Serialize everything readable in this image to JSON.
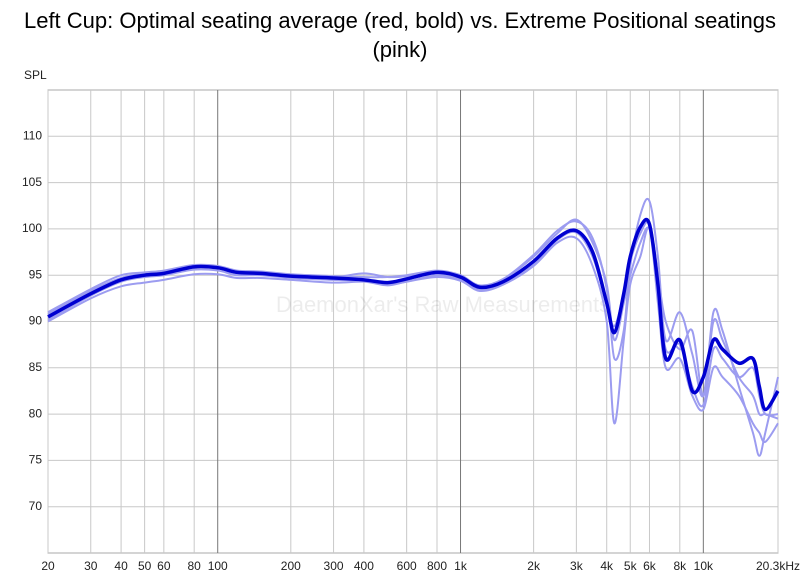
{
  "chart_data": {
    "type": "line",
    "title": "Left Cup: Optimal seating average (red, bold) vs. Extreme Positional seatings (pink)",
    "y_label": "SPL",
    "watermark": "DaemonXar's Raw Measurements",
    "log_x": true,
    "grid": true,
    "xlim": [
      20,
      20300
    ],
    "ylim": [
      65,
      115
    ],
    "yticks": [
      70,
      75,
      80,
      85,
      90,
      95,
      100,
      105,
      110
    ],
    "xticks": [
      20,
      30,
      40,
      50,
      60,
      80,
      100,
      200,
      300,
      400,
      600,
      800,
      {
        "value": 1000,
        "label": "1k"
      },
      {
        "value": 2000,
        "label": "2k"
      },
      {
        "value": 3000,
        "label": "3k"
      },
      {
        "value": 4000,
        "label": "4k"
      },
      {
        "value": 5000,
        "label": "5k"
      },
      {
        "value": 6000,
        "label": "6k"
      },
      {
        "value": 8000,
        "label": "8k"
      },
      {
        "value": 10000,
        "label": "10k"
      },
      {
        "value": 20300,
        "label": "20.3kHz"
      }
    ],
    "x": [
      20,
      30,
      40,
      50,
      60,
      80,
      100,
      120,
      150,
      200,
      300,
      400,
      500,
      600,
      800,
      1000,
      1200,
      1500,
      2000,
      2500,
      3000,
      3500,
      4000,
      4300,
      4700,
      5000,
      5500,
      6000,
      6500,
      7000,
      8000,
      9000,
      10000,
      11000,
      12000,
      14000,
      16000,
      17000,
      18000,
      20300
    ],
    "series": [
      {
        "color": "#9c9cf0",
        "width": 2,
        "values": [
          91,
          93.5,
          95,
          95.3,
          95.5,
          96.1,
          96,
          95.5,
          95.4,
          95.1,
          94.9,
          94.8,
          94.8,
          95,
          95.5,
          95,
          93.9,
          94.6,
          97.2,
          99.8,
          100.8,
          99,
          93.5,
          86,
          89,
          96,
          101.5,
          103,
          97,
          88,
          91,
          86.5,
          82,
          91,
          89,
          83,
          78,
          75.5,
          78,
          84
        ]
      },
      {
        "color": "#9c9cf0",
        "width": 2,
        "values": [
          90.2,
          92.8,
          94.3,
          94.8,
          95,
          95.6,
          95.5,
          95,
          95,
          94.7,
          94.5,
          94.4,
          94,
          94.3,
          95,
          94.5,
          93.5,
          94,
          96,
          98.5,
          99,
          96,
          90,
          79,
          88,
          94,
          97,
          100,
          92,
          85,
          86,
          82,
          80.5,
          85,
          84,
          82,
          79,
          78,
          77,
          79
        ]
      },
      {
        "color": "#9c9cf0",
        "width": 2,
        "values": [
          90.8,
          93.3,
          94.7,
          95.2,
          95.4,
          96,
          95.9,
          95.4,
          95.3,
          95,
          94.8,
          95.2,
          94.8,
          94.9,
          95.4,
          95,
          93.8,
          94.5,
          97,
          99.5,
          101,
          98.5,
          94,
          88,
          92,
          95,
          98.5,
          100,
          95,
          90,
          87,
          89,
          82,
          90,
          88,
          84,
          82,
          80,
          80,
          79.5
        ]
      },
      {
        "color": "#9c9cf0",
        "width": 2,
        "values": [
          90,
          92.5,
          93.8,
          94.2,
          94.5,
          95.1,
          95.1,
          94.7,
          94.7,
          94.5,
          94.2,
          94.3,
          93.9,
          94.3,
          94.8,
          94.4,
          93.3,
          94,
          96.2,
          98.8,
          99.6,
          97,
          92,
          89.5,
          93,
          96.5,
          99.5,
          100.5,
          95,
          87,
          87.5,
          83,
          81,
          87,
          86,
          84,
          85,
          82,
          80,
          80
        ]
      },
      {
        "color": "#0000d0",
        "width": 3.5,
        "values": [
          90.5,
          93,
          94.5,
          95,
          95.2,
          95.9,
          95.8,
          95.3,
          95.2,
          94.9,
          94.7,
          94.5,
          94.2,
          94.6,
          95.3,
          94.8,
          93.7,
          94.3,
          96.5,
          99,
          99.8,
          97.5,
          92,
          88.8,
          93,
          97,
          100.2,
          100.5,
          94,
          86,
          88,
          82.5,
          84,
          88,
          87,
          85.5,
          86,
          83,
          80.5,
          82.5
        ]
      }
    ]
  }
}
